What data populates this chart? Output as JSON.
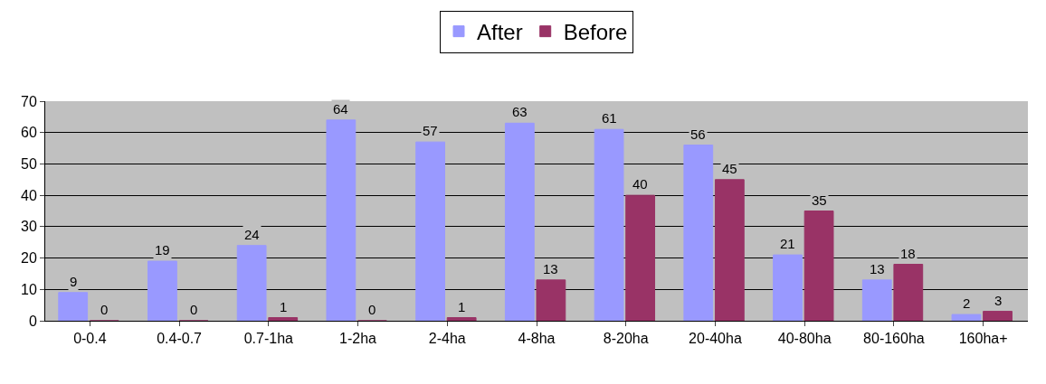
{
  "chart_data": {
    "type": "bar",
    "categories": [
      "0-0.4",
      "0.4-0.7",
      "0.7-1ha",
      "1-2ha",
      "2-4ha",
      "4-8ha",
      "8-20ha",
      "20-40ha",
      "40-80ha",
      "80-160ha",
      "160ha+"
    ],
    "series": [
      {
        "name": "After",
        "color": "#9999ff",
        "values": [
          9,
          19,
          24,
          64,
          57,
          63,
          61,
          56,
          21,
          13,
          2
        ]
      },
      {
        "name": "Before",
        "color": "#993366",
        "values": [
          0,
          0,
          1,
          0,
          1,
          13,
          40,
          45,
          35,
          18,
          3
        ]
      }
    ],
    "ylim": [
      0,
      70
    ],
    "yticks": [
      0,
      10,
      20,
      30,
      40,
      50,
      60,
      70
    ],
    "grid": "y",
    "legend": "top",
    "data_labels": true
  }
}
